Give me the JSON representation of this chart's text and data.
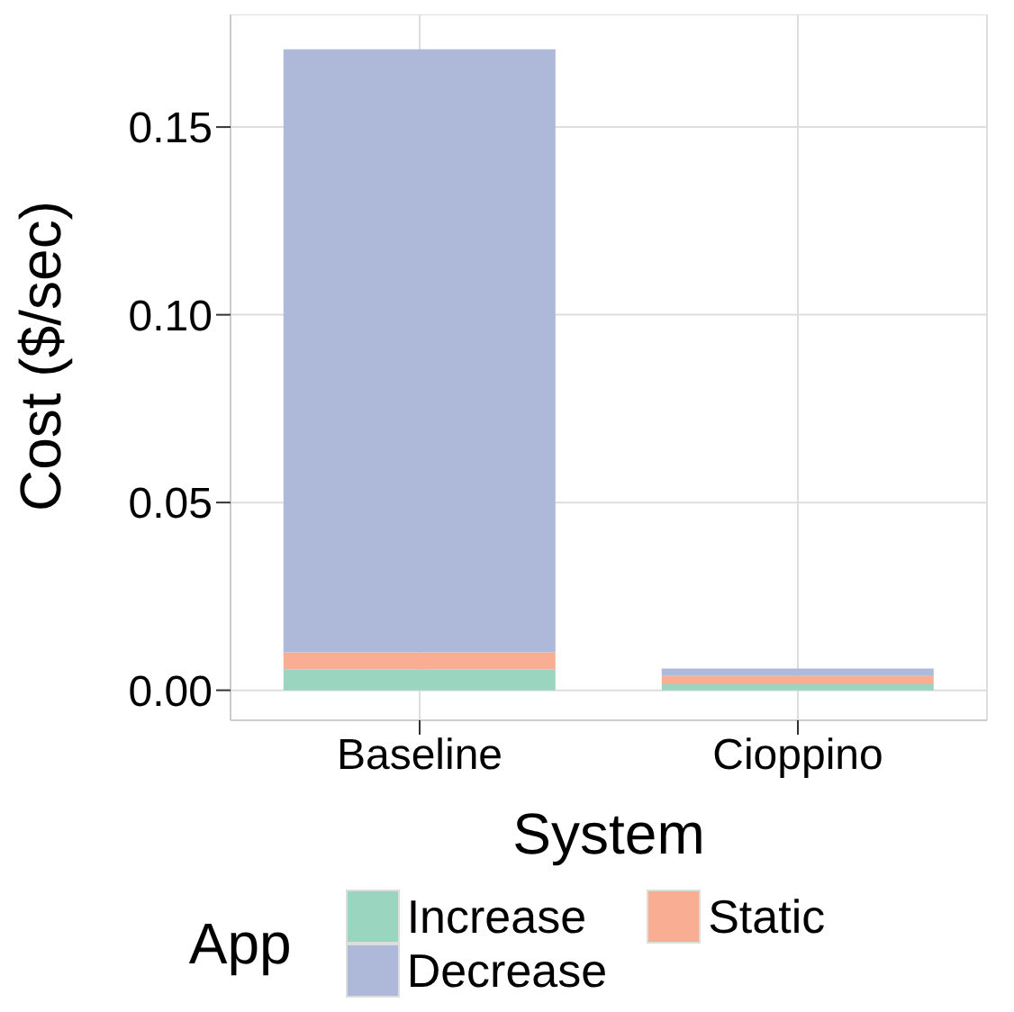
{
  "chart_data": {
    "type": "bar",
    "xlabel": "System",
    "ylabel": "Cost ($/sec)",
    "legend_title": "App",
    "categories": [
      "Baseline",
      "Cioppino"
    ],
    "stacked": true,
    "series": [
      {
        "name": "Increase",
        "color": "#9ad5c0",
        "values": [
          0.0056,
          0.0016
        ]
      },
      {
        "name": "Static",
        "color": "#f9ae94",
        "values": [
          0.0045,
          0.0022
        ]
      },
      {
        "name": "Decrease",
        "color": "#aeb9d9",
        "values": [
          0.1606,
          0.002
        ]
      }
    ],
    "ylim": [
      -0.008,
      0.18
    ],
    "yticks": [
      {
        "value": 0,
        "label": "0.00"
      },
      {
        "value": 0.05,
        "label": "0.05"
      },
      {
        "value": 0.1,
        "label": "0.10"
      },
      {
        "value": 0.15,
        "label": "0.15"
      }
    ],
    "grid": true,
    "legend": "bottom"
  }
}
